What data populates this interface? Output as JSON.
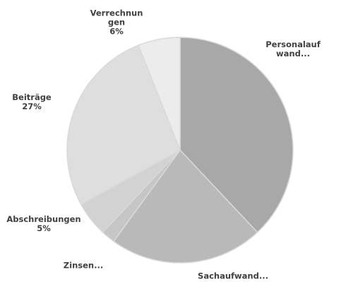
{
  "chart_data": {
    "type": "pie",
    "categories": [
      "Personalaufwand...",
      "Sachaufwand...",
      "Zinsen...",
      "Abschreibungen",
      "Beiträge",
      "Verrechnungen"
    ],
    "values": [
      38,
      22,
      2,
      5,
      27,
      6
    ],
    "value_labels": [
      null,
      null,
      null,
      "5%",
      "27%",
      "6%"
    ],
    "colors": [
      "#a8a8a8",
      "#b9b9b9",
      "#c6c6c6",
      "#d2d2d2",
      "#dedede",
      "#ececec"
    ]
  }
}
